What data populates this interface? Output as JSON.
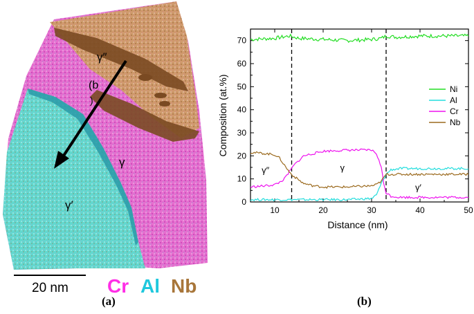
{
  "panel_a": {
    "labels": {
      "gamma_double_prime": "γ″",
      "gamma": "γ",
      "gamma_prime": "γ′",
      "b_ref_open": "(b",
      "b_ref_close": ")"
    },
    "scale_bar_label": "20 nm",
    "element_legend": [
      {
        "label": "Cr",
        "color": "#ff2ee6"
      },
      {
        "label": "Al",
        "color": "#1fc8dd"
      },
      {
        "label": "Nb",
        "color": "#a8763a"
      }
    ],
    "caption": "(a)",
    "colors": {
      "cr_phase": "#e860c8",
      "al_phase": "#58d6cc",
      "nb_phase": "#c89060",
      "precipitate_dark": "#7a4a22"
    }
  },
  "panel_b": {
    "caption": "(b)"
  },
  "chart_data": {
    "type": "line",
    "xlabel": "Distance (nm)",
    "ylabel": "Composition (at.%)",
    "xlim": [
      5,
      50
    ],
    "ylim": [
      0,
      75
    ],
    "xticks": [
      10,
      20,
      30,
      40,
      50
    ],
    "yticks": [
      0,
      10,
      20,
      30,
      40,
      50,
      60,
      70
    ],
    "grid": false,
    "legend_position": "right",
    "vlines": [
      13.5,
      33
    ],
    "annotations": [
      {
        "text": "γ″",
        "x": 7.3,
        "y": 12.5
      },
      {
        "text": "γ",
        "x": 23.5,
        "y": 13.5
      },
      {
        "text": "γ′",
        "x": 39,
        "y": 5
      }
    ],
    "series": [
      {
        "name": "Ni",
        "color": "#22dd22",
        "x": [
          5,
          10,
          13,
          15,
          20,
          25,
          30,
          32,
          33,
          35,
          40,
          45,
          50
        ],
        "y": [
          70.5,
          71,
          72,
          71,
          70.5,
          70,
          70.5,
          71,
          72,
          71.5,
          72,
          72,
          72
        ]
      },
      {
        "name": "Al",
        "color": "#22dddd",
        "x": [
          5,
          10,
          15,
          20,
          25,
          30,
          31,
          32,
          33,
          34,
          36,
          40,
          45,
          50
        ],
        "y": [
          1,
          1,
          1,
          1,
          1,
          1.5,
          3,
          8,
          12,
          14,
          14.5,
          14.5,
          14.5,
          14.5
        ]
      },
      {
        "name": "Cr",
        "color": "#ee11ee",
        "x": [
          5,
          8,
          10,
          11,
          12,
          13,
          14,
          15,
          16,
          18,
          20,
          25,
          30,
          31,
          32,
          32.5,
          33,
          34,
          36,
          40,
          45,
          50
        ],
        "y": [
          6.5,
          7,
          7.5,
          8.5,
          10,
          13,
          16,
          18,
          20,
          21,
          22,
          22.5,
          22.5,
          21,
          15,
          8,
          4,
          2.5,
          2,
          2,
          2,
          2
        ]
      },
      {
        "name": "Nb",
        "color": "#9b6a1e",
        "x": [
          5,
          8,
          10,
          11,
          12,
          13,
          14,
          15,
          16,
          18,
          20,
          25,
          30,
          31,
          32,
          32.5,
          33,
          34,
          36,
          40,
          45,
          50
        ],
        "y": [
          21.5,
          21,
          20.5,
          19,
          16,
          13,
          11,
          9.5,
          8,
          7,
          6.5,
          6.5,
          7,
          7.5,
          9,
          10.5,
          12,
          12,
          12,
          12,
          12,
          12
        ]
      }
    ]
  }
}
